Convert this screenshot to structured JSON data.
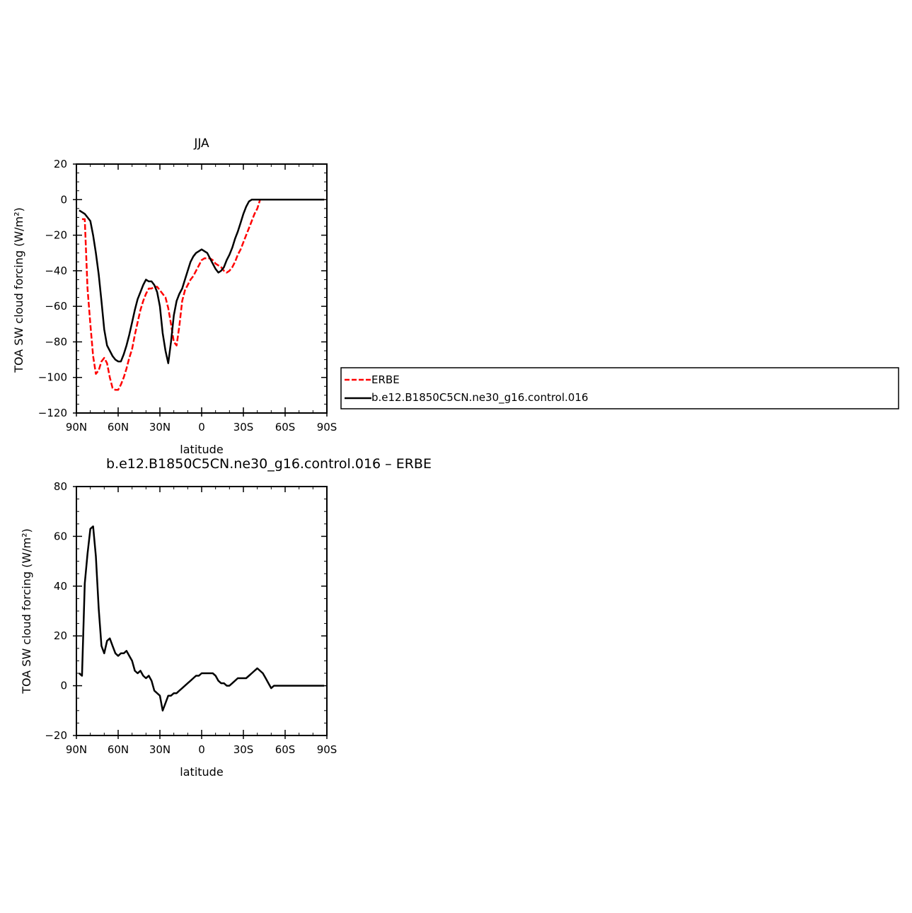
{
  "colors": {
    "obs": "#ff0000",
    "model": "#000000",
    "frame": "#000000"
  },
  "legend": {
    "entries": [
      {
        "label": "ERBE",
        "color": "#ff0000",
        "dash": true
      },
      {
        "label": "b.e12.B1850C5CN.ne30_g16.control.016",
        "color": "#000000",
        "dash": false
      }
    ]
  },
  "chart_data": [
    {
      "type": "line",
      "title": "JJA",
      "xlabel": "latitude",
      "ylabel": "TOA SW cloud forcing (W/m²)",
      "xlim": [
        90,
        -90
      ],
      "ylim": [
        -120,
        20
      ],
      "xticks": [
        {
          "v": 90,
          "label": "90N"
        },
        {
          "v": 60,
          "label": "60N"
        },
        {
          "v": 30,
          "label": "30N"
        },
        {
          "v": 0,
          "label": "0"
        },
        {
          "v": -30,
          "label": "30S"
        },
        {
          "v": -60,
          "label": "60S"
        },
        {
          "v": -90,
          "label": "90S"
        }
      ],
      "yticks": [
        20,
        0,
        -20,
        -40,
        -60,
        -80,
        -100,
        -120
      ],
      "series": [
        {
          "name": "ERBE",
          "style": "dashed",
          "color": "#ff0000",
          "x": [
            86,
            84,
            82,
            80,
            78,
            76,
            74,
            72,
            70,
            68,
            66,
            64,
            62,
            60,
            58,
            56,
            54,
            52,
            50,
            48,
            46,
            44,
            42,
            40,
            38,
            36,
            34,
            32,
            30,
            28,
            26,
            24,
            22,
            20,
            18,
            16,
            14,
            12,
            10,
            8,
            6,
            4,
            2,
            0,
            -2,
            -4,
            -6,
            -8,
            -10,
            -12,
            -14,
            -16,
            -18,
            -20,
            -22,
            -24,
            -26,
            -28,
            -30,
            -32,
            -34,
            -36,
            -38,
            -40,
            -42,
            -44,
            -46,
            -48,
            -50,
            -52,
            -54,
            -56,
            -58,
            -60,
            -62,
            -64,
            -66,
            -68,
            -70,
            -72,
            -74,
            -76,
            -78,
            -80,
            -82,
            -84,
            -86,
            -88
          ],
          "y": [
            -11,
            -11,
            -50,
            -70,
            -88,
            -98,
            -96,
            -91,
            -89,
            -92,
            -100,
            -106,
            -107,
            -107,
            -104,
            -100,
            -95,
            -89,
            -84,
            -76,
            -69,
            -62,
            -57,
            -53,
            -50,
            -50,
            -49,
            -49,
            -51,
            -53,
            -55,
            -61,
            -70,
            -80,
            -82,
            -71,
            -57,
            -51,
            -48,
            -45,
            -43,
            -40,
            -37,
            -34,
            -33,
            -33,
            -33,
            -34,
            -36,
            -37,
            -38,
            -40,
            -41,
            -40,
            -38,
            -35,
            -31,
            -28,
            -24,
            -20,
            -16,
            -12,
            -8,
            -5,
            0,
            0,
            0,
            0,
            0,
            0,
            0,
            0,
            0,
            0,
            0,
            0,
            0,
            0,
            0,
            0,
            0,
            0,
            0,
            0,
            0,
            0,
            0,
            0
          ]
        },
        {
          "name": "b.e12.B1850C5CN.ne30_g16.control.016",
          "style": "solid",
          "color": "#000000",
          "x": [
            88,
            86,
            84,
            82,
            80,
            78,
            76,
            74,
            72,
            70,
            68,
            66,
            64,
            62,
            60,
            58,
            56,
            54,
            52,
            50,
            48,
            46,
            44,
            42,
            40,
            38,
            36,
            34,
            32,
            30,
            28,
            26,
            24,
            22,
            20,
            18,
            16,
            14,
            12,
            10,
            8,
            6,
            4,
            2,
            0,
            -2,
            -4,
            -6,
            -8,
            -10,
            -12,
            -14,
            -16,
            -18,
            -20,
            -22,
            -24,
            -26,
            -28,
            -30,
            -32,
            -34,
            -36,
            -38,
            -40,
            -42,
            -44,
            -46,
            -48,
            -50,
            -52,
            -54,
            -56,
            -58,
            -60,
            -62,
            -64,
            -66,
            -68,
            -70,
            -72,
            -74,
            -76,
            -78,
            -80,
            -82,
            -84,
            -86,
            -88
          ],
          "y": [
            -6,
            -7,
            -8,
            -10,
            -12,
            -20,
            -30,
            -42,
            -57,
            -73,
            -82,
            -85,
            -88,
            -90,
            -91,
            -91,
            -87,
            -82,
            -76,
            -69,
            -62,
            -56,
            -52,
            -48,
            -45,
            -46,
            -46,
            -48,
            -52,
            -60,
            -75,
            -85,
            -92,
            -80,
            -65,
            -57,
            -53,
            -50,
            -45,
            -40,
            -35,
            -32,
            -30,
            -29,
            -28,
            -29,
            -30,
            -33,
            -36,
            -39,
            -41,
            -40,
            -38,
            -34,
            -31,
            -27,
            -22,
            -18,
            -13,
            -8,
            -4,
            -1,
            0,
            0,
            0,
            0,
            0,
            0,
            0,
            0,
            0,
            0,
            0,
            0,
            0,
            0,
            0,
            0,
            0,
            0,
            0,
            0,
            0,
            0,
            0,
            0,
            0,
            0,
            0
          ]
        }
      ]
    },
    {
      "type": "line",
      "title": "b.e12.B1850C5CN.ne30_g16.control.016 – ERBE",
      "xlabel": "latitude",
      "ylabel": "TOA SW cloud forcing (W/m²)",
      "xlim": [
        90,
        -90
      ],
      "ylim": [
        -20,
        80
      ],
      "xticks": [
        {
          "v": 90,
          "label": "90N"
        },
        {
          "v": 60,
          "label": "60N"
        },
        {
          "v": 30,
          "label": "30N"
        },
        {
          "v": 0,
          "label": "0"
        },
        {
          "v": -30,
          "label": "30S"
        },
        {
          "v": -60,
          "label": "60S"
        },
        {
          "v": -90,
          "label": "90S"
        }
      ],
      "yticks": [
        80,
        60,
        40,
        20,
        0,
        -20
      ],
      "series": [
        {
          "name": "",
          "style": "solid",
          "color": "#000000",
          "x": [
            88,
            86,
            84,
            82,
            80,
            78,
            76,
            74,
            72,
            70,
            68,
            66,
            64,
            62,
            60,
            58,
            56,
            54,
            52,
            50,
            48,
            46,
            44,
            42,
            40,
            38,
            36,
            34,
            32,
            30,
            28,
            26,
            24,
            22,
            20,
            18,
            16,
            14,
            12,
            10,
            8,
            6,
            4,
            2,
            0,
            -2,
            -4,
            -6,
            -8,
            -10,
            -12,
            -14,
            -16,
            -18,
            -20,
            -22,
            -24,
            -26,
            -28,
            -30,
            -32,
            -34,
            -36,
            -38,
            -40,
            -42,
            -44,
            -46,
            -48,
            -50,
            -52,
            -54,
            -56,
            -58,
            -60,
            -62,
            -64,
            -66,
            -68,
            -70,
            -72,
            -74,
            -76,
            -78,
            -80,
            -82,
            -84,
            -86,
            -88
          ],
          "y": [
            5,
            4,
            41,
            53,
            63,
            64,
            52,
            31,
            16,
            13,
            18,
            19,
            16,
            13,
            12,
            13,
            13,
            14,
            12,
            10,
            6,
            5,
            6,
            4,
            3,
            4,
            2,
            -2,
            -3,
            -4,
            -10,
            -7,
            -4,
            -4,
            -3,
            -3,
            -2,
            -1,
            0,
            1,
            2,
            3,
            4,
            4,
            5,
            5,
            5,
            5,
            5,
            4,
            2,
            1,
            1,
            0,
            0,
            1,
            2,
            3,
            3,
            3,
            3,
            4,
            5,
            6,
            7,
            6,
            5,
            3,
            1,
            -1,
            0,
            0,
            0,
            0,
            0,
            0,
            0,
            0,
            0,
            0,
            0,
            0,
            0,
            0,
            0,
            0,
            0,
            0,
            0
          ]
        }
      ]
    }
  ]
}
